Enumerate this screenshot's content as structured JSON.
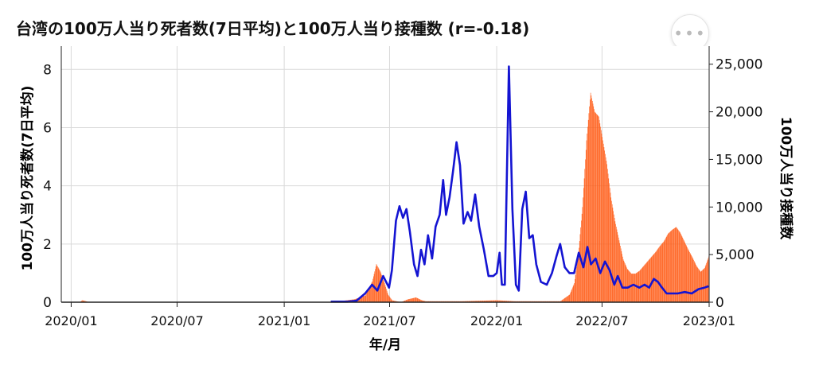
{
  "colors": {
    "deaths": "#1414d2",
    "vaccinations": "#ff5a14",
    "grid": "#d9d9d9",
    "axis": "#222222"
  },
  "menu_icon": "more-horizontal-icon",
  "chart_data": {
    "type": "bar+line",
    "title": "台湾の100万人当り死者数(7日平均)と100万人当り接種数 (r=-0.18)",
    "xlabel": "年/月",
    "ylabel_left": "100万人当り死者数(7日平均)",
    "ylabel_right": "100万人当り接種数",
    "x_range": [
      "2019-12-15",
      "2023-01-01"
    ],
    "x_ticks": [
      "2020/01",
      "2020/07",
      "2021/01",
      "2021/07",
      "2022/01",
      "2022/07",
      "2023/01"
    ],
    "y_left": {
      "min": 0,
      "max": 8.8,
      "ticks": [
        "0",
        "2",
        "4",
        "6",
        "8"
      ]
    },
    "y_right": {
      "min": 0,
      "max": 26900,
      "ticks": [
        "0",
        "5,000",
        "10,000",
        "15,000",
        "20,000",
        "25,000"
      ]
    },
    "grid": true,
    "series": [
      {
        "name": "100万人当り死者数(7日平均)",
        "type": "line",
        "axis": "left",
        "points": [
          [
            "2021-03-22",
            0.02
          ],
          [
            "2021-04-20",
            0.02
          ],
          [
            "2021-05-05",
            0.05
          ],
          [
            "2021-05-20",
            0.3
          ],
          [
            "2021-06-01",
            0.6
          ],
          [
            "2021-06-10",
            0.4
          ],
          [
            "2021-06-20",
            0.9
          ],
          [
            "2021-06-30",
            0.5
          ],
          [
            "2021-07-05",
            1.1
          ],
          [
            "2021-07-12",
            2.8
          ],
          [
            "2021-07-18",
            3.3
          ],
          [
            "2021-07-24",
            2.9
          ],
          [
            "2021-07-30",
            3.2
          ],
          [
            "2021-08-05",
            2.4
          ],
          [
            "2021-08-12",
            1.3
          ],
          [
            "2021-08-18",
            0.9
          ],
          [
            "2021-08-24",
            1.8
          ],
          [
            "2021-08-30",
            1.3
          ],
          [
            "2021-09-05",
            2.3
          ],
          [
            "2021-09-12",
            1.5
          ],
          [
            "2021-09-18",
            2.6
          ],
          [
            "2021-09-25",
            3.0
          ],
          [
            "2021-10-01",
            4.2
          ],
          [
            "2021-10-06",
            3.0
          ],
          [
            "2021-10-12",
            3.6
          ],
          [
            "2021-10-18",
            4.5
          ],
          [
            "2021-10-24",
            5.5
          ],
          [
            "2021-10-30",
            4.7
          ],
          [
            "2021-11-05",
            2.7
          ],
          [
            "2021-11-12",
            3.1
          ],
          [
            "2021-11-18",
            2.8
          ],
          [
            "2021-11-25",
            3.7
          ],
          [
            "2021-12-02",
            2.6
          ],
          [
            "2021-12-10",
            1.8
          ],
          [
            "2021-12-18",
            0.9
          ],
          [
            "2021-12-26",
            0.9
          ],
          [
            "2022-01-01",
            1.0
          ],
          [
            "2022-01-06",
            1.7
          ],
          [
            "2022-01-10",
            0.6
          ],
          [
            "2022-01-15",
            0.6
          ],
          [
            "2022-01-22",
            8.1
          ],
          [
            "2022-01-28",
            3.2
          ],
          [
            "2022-02-03",
            0.6
          ],
          [
            "2022-02-08",
            0.4
          ],
          [
            "2022-02-14",
            3.2
          ],
          [
            "2022-02-20",
            3.8
          ],
          [
            "2022-02-26",
            2.2
          ],
          [
            "2022-03-04",
            2.3
          ],
          [
            "2022-03-10",
            1.3
          ],
          [
            "2022-03-18",
            0.7
          ],
          [
            "2022-03-28",
            0.6
          ],
          [
            "2022-04-06",
            1.0
          ],
          [
            "2022-04-14",
            1.6
          ],
          [
            "2022-04-20",
            2.0
          ],
          [
            "2022-04-28",
            1.2
          ],
          [
            "2022-05-06",
            1.0
          ],
          [
            "2022-05-14",
            1.0
          ],
          [
            "2022-05-22",
            1.7
          ],
          [
            "2022-05-30",
            1.2
          ],
          [
            "2022-06-06",
            1.9
          ],
          [
            "2022-06-12",
            1.3
          ],
          [
            "2022-06-20",
            1.5
          ],
          [
            "2022-06-28",
            1.0
          ],
          [
            "2022-07-06",
            1.4
          ],
          [
            "2022-07-14",
            1.1
          ],
          [
            "2022-07-22",
            0.6
          ],
          [
            "2022-07-28",
            0.9
          ],
          [
            "2022-08-05",
            0.5
          ],
          [
            "2022-08-14",
            0.5
          ],
          [
            "2022-08-24",
            0.6
          ],
          [
            "2022-09-03",
            0.5
          ],
          [
            "2022-09-12",
            0.6
          ],
          [
            "2022-09-20",
            0.5
          ],
          [
            "2022-09-28",
            0.8
          ],
          [
            "2022-10-05",
            0.7
          ],
          [
            "2022-10-12",
            0.5
          ],
          [
            "2022-10-20",
            0.3
          ],
          [
            "2022-10-28",
            0.3
          ],
          [
            "2022-11-08",
            0.3
          ],
          [
            "2022-11-20",
            0.35
          ],
          [
            "2022-12-02",
            0.3
          ],
          [
            "2022-12-14",
            0.45
          ],
          [
            "2022-12-24",
            0.5
          ],
          [
            "2022-12-31",
            0.55
          ]
        ]
      },
      {
        "name": "100万人当り接種数",
        "type": "bar",
        "axis": "right",
        "points": [
          [
            "2019-12-15",
            0
          ],
          [
            "2020-01-15",
            0
          ],
          [
            "2020-01-20",
            200
          ],
          [
            "2020-02-01",
            0
          ],
          [
            "2021-03-20",
            0
          ],
          [
            "2021-04-05",
            100
          ],
          [
            "2021-05-01",
            300
          ],
          [
            "2021-05-20",
            700
          ],
          [
            "2021-06-01",
            2200
          ],
          [
            "2021-06-08",
            4000
          ],
          [
            "2021-06-15",
            3200
          ],
          [
            "2021-06-22",
            2000
          ],
          [
            "2021-06-28",
            800
          ],
          [
            "2021-07-05",
            200
          ],
          [
            "2021-07-20",
            0
          ],
          [
            "2021-08-01",
            300
          ],
          [
            "2021-08-15",
            500
          ],
          [
            "2021-08-25",
            200
          ],
          [
            "2021-09-01",
            100
          ],
          [
            "2021-10-01",
            100
          ],
          [
            "2021-11-01",
            100
          ],
          [
            "2021-12-01",
            150
          ],
          [
            "2022-01-01",
            200
          ],
          [
            "2022-02-01",
            100
          ],
          [
            "2022-03-01",
            100
          ],
          [
            "2022-04-20",
            100
          ],
          [
            "2022-05-06",
            800
          ],
          [
            "2022-05-14",
            2000
          ],
          [
            "2022-05-21",
            5000
          ],
          [
            "2022-05-28",
            10000
          ],
          [
            "2022-06-04",
            17000
          ],
          [
            "2022-06-11",
            22000
          ],
          [
            "2022-06-18",
            20000
          ],
          [
            "2022-06-25",
            19500
          ],
          [
            "2022-07-02",
            17000
          ],
          [
            "2022-07-09",
            14500
          ],
          [
            "2022-07-16",
            11000
          ],
          [
            "2022-07-23",
            8500
          ],
          [
            "2022-07-30",
            6500
          ],
          [
            "2022-08-06",
            4500
          ],
          [
            "2022-08-13",
            3500
          ],
          [
            "2022-08-20",
            3000
          ],
          [
            "2022-08-27",
            3000
          ],
          [
            "2022-09-03",
            3300
          ],
          [
            "2022-09-10",
            3800
          ],
          [
            "2022-09-17",
            4300
          ],
          [
            "2022-09-24",
            4800
          ],
          [
            "2022-10-01",
            5300
          ],
          [
            "2022-10-08",
            5900
          ],
          [
            "2022-10-15",
            6400
          ],
          [
            "2022-10-22",
            7200
          ],
          [
            "2022-10-29",
            7600
          ],
          [
            "2022-11-05",
            7900
          ],
          [
            "2022-11-12",
            7300
          ],
          [
            "2022-11-19",
            6400
          ],
          [
            "2022-11-26",
            5500
          ],
          [
            "2022-12-03",
            4700
          ],
          [
            "2022-12-10",
            3800
          ],
          [
            "2022-12-17",
            3200
          ],
          [
            "2022-12-24",
            3600
          ],
          [
            "2022-12-31",
            4800
          ]
        ]
      }
    ]
  }
}
